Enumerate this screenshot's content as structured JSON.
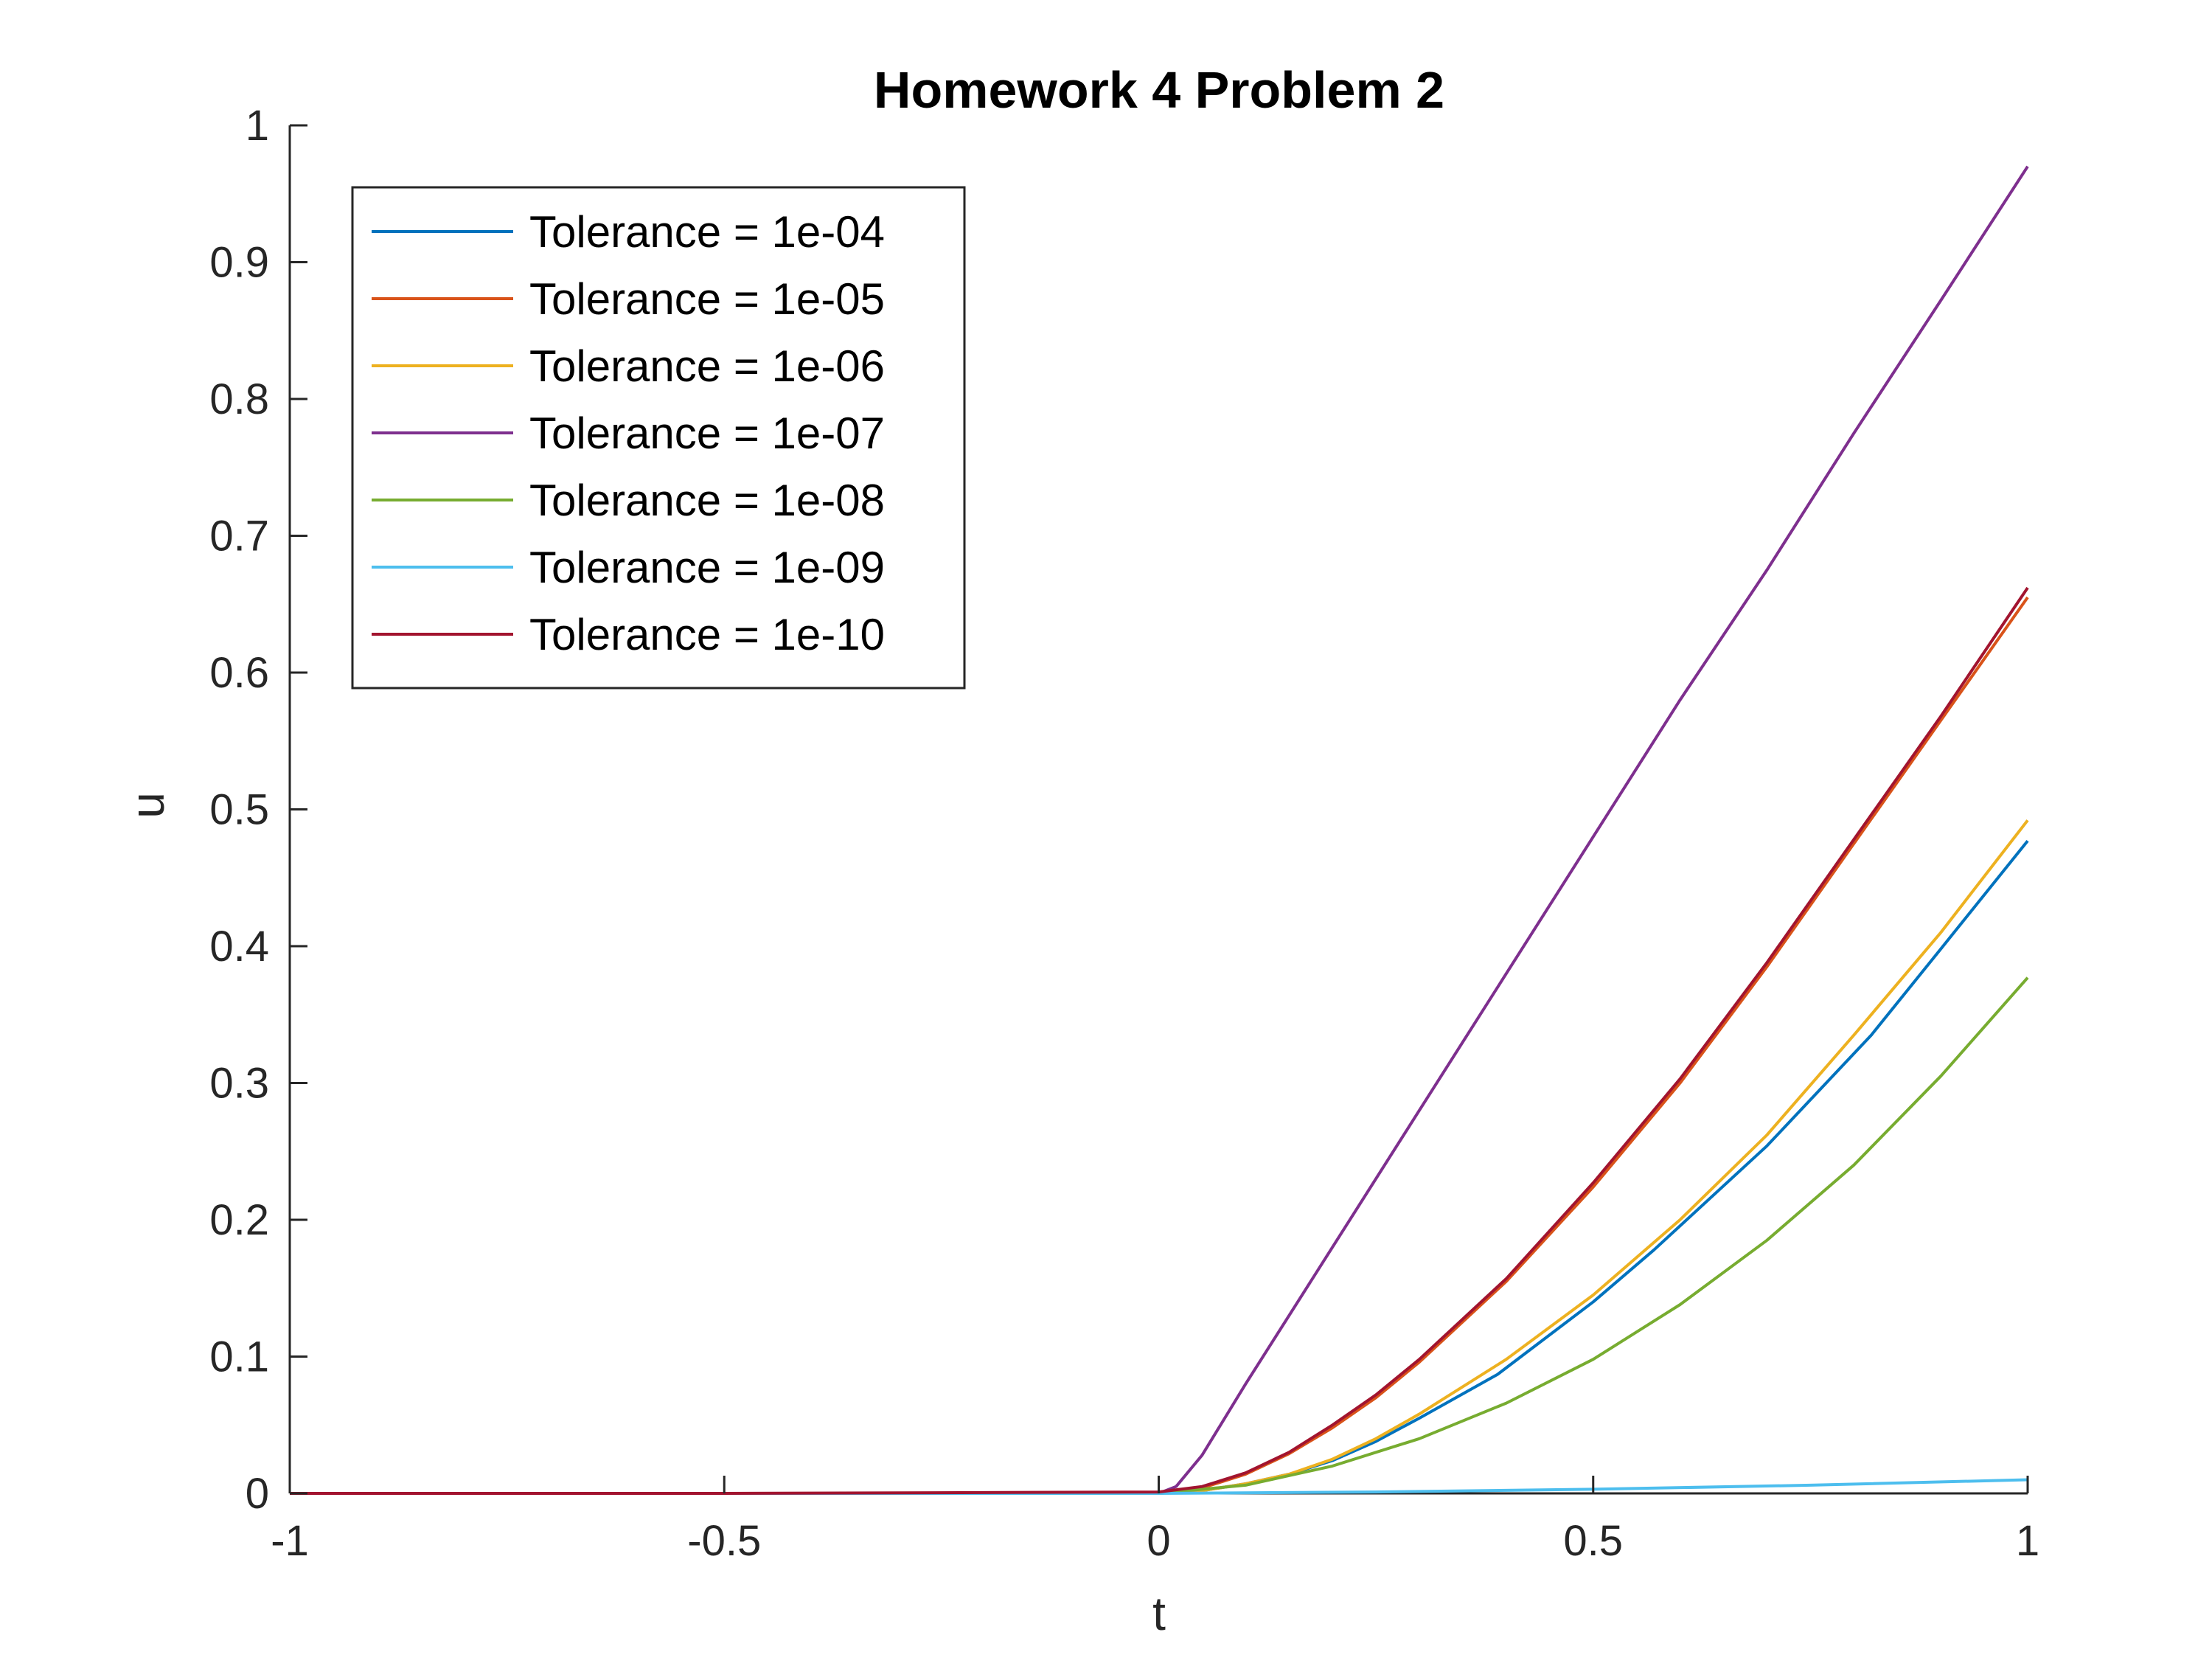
{
  "chart_data": {
    "type": "line",
    "title": "Homework 4 Problem 2",
    "xlabel": "t",
    "ylabel": "u",
    "xlim": [
      -1,
      1
    ],
    "ylim": [
      0,
      1
    ],
    "xticks": [
      "-1",
      "-0.5",
      "0",
      "0.5",
      "1"
    ],
    "yticks": [
      "0",
      "0.1",
      "0.2",
      "0.3",
      "0.4",
      "0.5",
      "0.6",
      "0.7",
      "0.8",
      "0.9",
      "1"
    ],
    "grid": false,
    "legend_position": "top-left",
    "series": [
      {
        "name": "Tolerance = 1e-04",
        "color": "#0072BD",
        "x": [
          -1,
          -0.5,
          0,
          0.05,
          0.1,
          0.15,
          0.2,
          0.25,
          0.3,
          0.39,
          0.5,
          0.57,
          0.7,
          0.82,
          0.9,
          1
        ],
        "y": [
          0,
          0,
          0,
          0.002,
          0.007,
          0.014,
          0.024,
          0.038,
          0.055,
          0.087,
          0.14,
          0.178,
          0.254,
          0.335,
          0.398,
          0.477
        ]
      },
      {
        "name": "Tolerance = 1e-05",
        "color": "#D95319",
        "x": [
          -1,
          -0.5,
          0,
          0.05,
          0.1,
          0.15,
          0.2,
          0.25,
          0.3,
          0.4,
          0.5,
          0.6,
          0.7,
          0.8,
          0.9,
          1
        ],
        "y": [
          0,
          0,
          0,
          0.004,
          0.014,
          0.029,
          0.048,
          0.07,
          0.096,
          0.155,
          0.224,
          0.3,
          0.385,
          0.475,
          0.565,
          0.655
        ]
      },
      {
        "name": "Tolerance = 1e-06",
        "color": "#EDB120",
        "x": [
          -1,
          -0.5,
          0,
          0.05,
          0.1,
          0.15,
          0.2,
          0.25,
          0.3,
          0.4,
          0.5,
          0.6,
          0.7,
          0.8,
          0.9,
          1
        ],
        "y": [
          0,
          0,
          0,
          0.002,
          0.007,
          0.014,
          0.025,
          0.04,
          0.058,
          0.098,
          0.145,
          0.2,
          0.262,
          0.335,
          0.41,
          0.492
        ]
      },
      {
        "name": "Tolerance = 1e-07",
        "color": "#7E2F8E",
        "x": [
          -1,
          -0.5,
          0,
          0.02,
          0.05,
          0.1,
          0.2,
          0.3,
          0.4,
          0.5,
          0.6,
          0.7,
          0.8,
          0.9,
          1
        ],
        "y": [
          0,
          0,
          0,
          0.005,
          0.028,
          0.08,
          0.18,
          0.28,
          0.38,
          0.48,
          0.58,
          0.675,
          0.775,
          0.872,
          0.97
        ]
      },
      {
        "name": "Tolerance = 1e-08",
        "color": "#77AC30",
        "x": [
          -1,
          -0.5,
          0,
          0.1,
          0.2,
          0.3,
          0.4,
          0.5,
          0.6,
          0.7,
          0.8,
          0.9,
          1
        ],
        "y": [
          0,
          0,
          0,
          0.006,
          0.02,
          0.04,
          0.066,
          0.098,
          0.138,
          0.185,
          0.24,
          0.305,
          0.377
        ]
      },
      {
        "name": "Tolerance = 1e-09",
        "color": "#4DBEEE",
        "x": [
          -1,
          -0.5,
          0,
          0.25,
          0.5,
          0.75,
          1
        ],
        "y": [
          0,
          0,
          0,
          0.001,
          0.003,
          0.006,
          0.01
        ]
      },
      {
        "name": "Tolerance = 1e-10",
        "color": "#A2142F",
        "x": [
          -1,
          -0.5,
          0,
          0.05,
          0.1,
          0.15,
          0.2,
          0.25,
          0.3,
          0.4,
          0.5,
          0.6,
          0.7,
          0.8,
          0.9,
          1
        ],
        "y": [
          0,
          0,
          0.001,
          0.005,
          0.015,
          0.03,
          0.05,
          0.072,
          0.098,
          0.157,
          0.227,
          0.303,
          0.388,
          0.478,
          0.568,
          0.662
        ]
      }
    ]
  }
}
